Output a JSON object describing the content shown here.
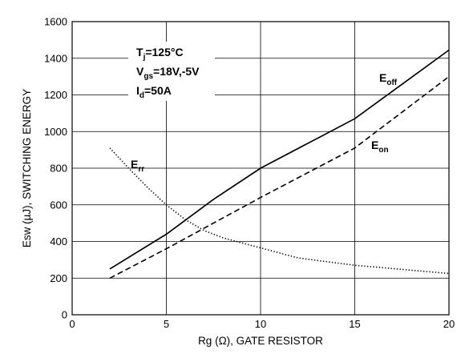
{
  "chart_data": {
    "type": "line",
    "xlabel": "Rg (Ω), GATE RESISTOR",
    "ylabel": "Esw (µJ), SWITCHING ENERGY",
    "xlim": [
      0,
      20
    ],
    "ylim": [
      0,
      1600
    ],
    "x_ticks": [
      "0",
      "5",
      "10",
      "15",
      "20"
    ],
    "y_ticks": [
      "0",
      "200",
      "400",
      "600",
      "800",
      "1000",
      "1200",
      "1400",
      "1600"
    ],
    "grid": true,
    "conditions": [
      {
        "main": "T",
        "sub": "j",
        "rest": "=125°C"
      },
      {
        "main": "V",
        "sub": "gs",
        "rest": "=18V,-5V"
      },
      {
        "main": "I",
        "sub": "d",
        "rest": "=50A"
      }
    ],
    "series": [
      {
        "name": "Eoff",
        "label_main": "E",
        "label_sub": "off",
        "style": "solid",
        "x": [
          2,
          5,
          7.5,
          10,
          15,
          20
        ],
        "y": [
          250,
          440,
          630,
          800,
          1070,
          1445
        ]
      },
      {
        "name": "Eon",
        "label_main": "E",
        "label_sub": "on",
        "style": "dashed",
        "x": [
          2,
          5,
          10,
          15,
          20
        ],
        "y": [
          200,
          360,
          640,
          910,
          1300
        ]
      },
      {
        "name": "Err",
        "label_main": "E",
        "label_sub": "rr",
        "style": "dotted",
        "x": [
          2,
          3,
          4,
          5,
          6,
          7,
          8,
          10,
          12,
          15,
          20
        ],
        "y": [
          910,
          800,
          695,
          600,
          520,
          460,
          420,
          365,
          310,
          270,
          225
        ]
      }
    ]
  }
}
